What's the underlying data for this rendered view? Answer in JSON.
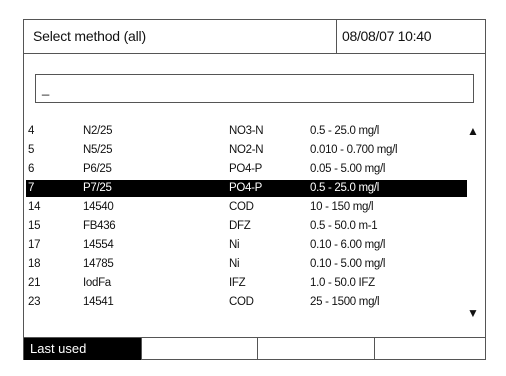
{
  "header": {
    "title": "Select method (all)",
    "datetime": "08/08/07 10:40"
  },
  "input": {
    "value": "_"
  },
  "list": {
    "scroll_up_icon": "triangle-up",
    "scroll_down_icon": "triangle-down",
    "rows": [
      {
        "no": "4",
        "code": "N2/25",
        "param": "NO3-N",
        "range": "0.5 - 25.0 mg/l"
      },
      {
        "no": "5",
        "code": "N5/25",
        "param": "NO2-N",
        "range": "0.010 - 0.700 mg/l"
      },
      {
        "no": "6",
        "code": "P6/25",
        "param": "PO4-P",
        "range": "0.05 - 5.00 mg/l"
      },
      {
        "no": "7",
        "code": "P7/25",
        "param": "PO4-P",
        "range": "0.5 - 25.0 mg/l"
      },
      {
        "no": "14",
        "code": "14540",
        "param": "COD",
        "range": "10 - 150 mg/l"
      },
      {
        "no": "15",
        "code": "FB436",
        "param": "DFZ",
        "range": "0.5 - 50.0 m-1"
      },
      {
        "no": "17",
        "code": "14554",
        "param": "Ni",
        "range": "0.10 - 6.00 mg/l"
      },
      {
        "no": "18",
        "code": "14785",
        "param": "Ni",
        "range": "0.10 - 5.00 mg/l"
      },
      {
        "no": "21",
        "code": "IodFa",
        "param": "IFZ",
        "range": "1.0 - 50.0 IFZ"
      },
      {
        "no": "23",
        "code": "14541",
        "param": "COD",
        "range": "25 - 1500 mg/l"
      }
    ],
    "selected_index": 3
  },
  "softkeys": {
    "key1": "Last used",
    "key2": "",
    "key3": "",
    "key4": ""
  }
}
